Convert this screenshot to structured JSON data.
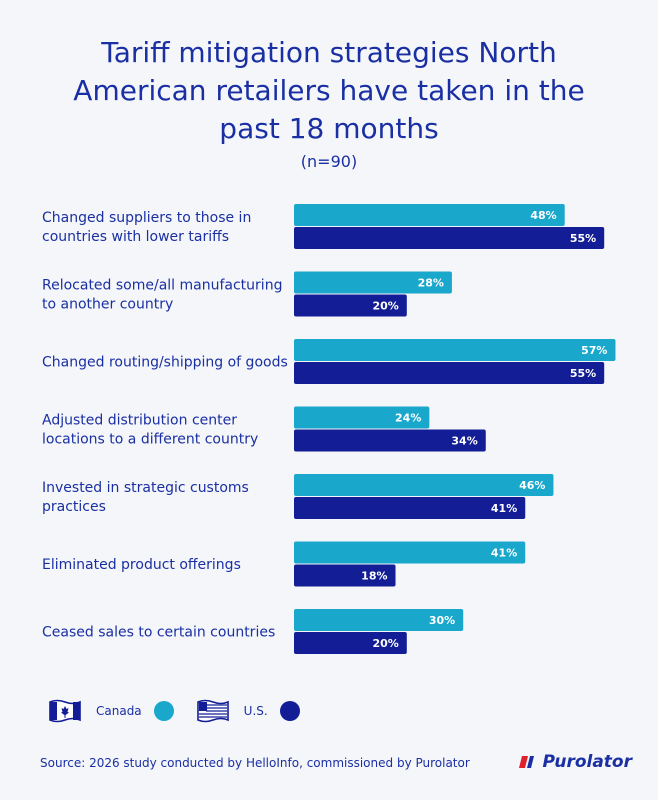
{
  "title": "Tariff mitigation strategies North American retailers have taken in the past 18 months",
  "subtitle": "(n=90)",
  "colors": {
    "canada": "#1aa7cc",
    "us": "#131e96",
    "text": "#1a2fa3",
    "background": "#f4f6f9",
    "logo_accent": "#e0202a"
  },
  "chart_data": {
    "type": "bar",
    "orientation": "horizontal",
    "categories": [
      [
        "Changed suppliers to those in",
        "countries with lower tariffs"
      ],
      [
        "Relocated some/all manufacturing",
        "to another country"
      ],
      [
        "Changed routing/shipping of goods"
      ],
      [
        "Adjusted distribution center",
        "locations to a different country"
      ],
      [
        "Invested in strategic customs",
        "practices"
      ],
      [
        "Eliminated product offerings"
      ],
      [
        "Ceased sales to certain countries"
      ]
    ],
    "series": [
      {
        "name": "Canada",
        "values": [
          48,
          28,
          57,
          24,
          46,
          41,
          30
        ]
      },
      {
        "name": "U.S.",
        "values": [
          55,
          20,
          55,
          34,
          41,
          18,
          20
        ]
      }
    ],
    "value_suffix": "%",
    "xlim": [
      0,
      60
    ],
    "grid": false
  },
  "legend": {
    "canada_label": "Canada",
    "us_label": "U.S.",
    "placement": "bottom-left"
  },
  "source": "Source: 2026 study conducted by HelloInfo, commissioned by Purolator",
  "logo_text": "Purolator"
}
